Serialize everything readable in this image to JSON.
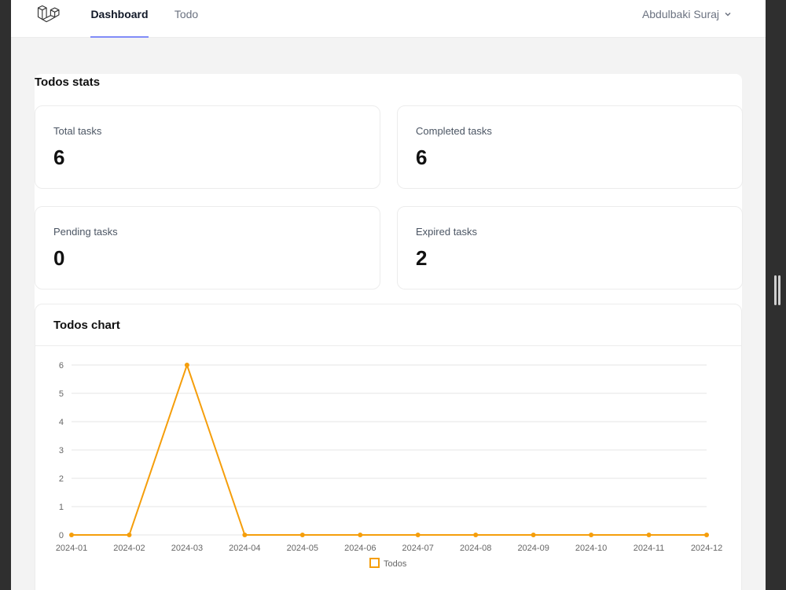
{
  "nav": {
    "links": [
      {
        "label": "Dashboard",
        "active": true
      },
      {
        "label": "Todo",
        "active": false
      }
    ],
    "user_name": "Abdulbaki Suraj",
    "accent_color": "#818cf8"
  },
  "stats": {
    "title": "Todos stats",
    "cards": [
      {
        "label": "Total tasks",
        "value": "6"
      },
      {
        "label": "Completed tasks",
        "value": "6"
      },
      {
        "label": "Pending tasks",
        "value": "0"
      },
      {
        "label": "Expired tasks",
        "value": "2"
      }
    ]
  },
  "chart_card": {
    "title": "Todos chart"
  },
  "chart_data": {
    "type": "line",
    "categories": [
      "2024-01",
      "2024-02",
      "2024-03",
      "2024-04",
      "2024-05",
      "2024-06",
      "2024-07",
      "2024-08",
      "2024-09",
      "2024-10",
      "2024-11",
      "2024-12"
    ],
    "series": [
      {
        "name": "Todos",
        "values": [
          0,
          0,
          6,
          0,
          0,
          0,
          0,
          0,
          0,
          0,
          0,
          0
        ],
        "color": "#f59e0b"
      }
    ],
    "ylim": [
      0,
      6
    ],
    "yticks": [
      0,
      1,
      2,
      3,
      4,
      5,
      6
    ],
    "grid": true,
    "legend": "bottom"
  }
}
